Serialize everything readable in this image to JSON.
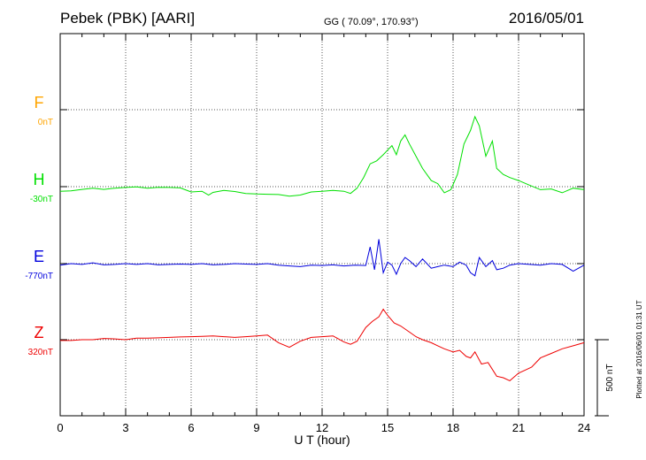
{
  "header": {
    "station": "Pebek (PBK)  [AARI]",
    "coords": "GG ( 70.09°, 170.93°)",
    "date": "2016/05/01"
  },
  "footer_note": "Plotted at 2016/06/01 01:31  UT",
  "scale_bar_label": "500 nT",
  "chart_data": {
    "type": "line",
    "xlabel": "U T (hour)",
    "xlim": [
      0,
      24
    ],
    "xticks": [
      0,
      3,
      6,
      9,
      12,
      15,
      18,
      21,
      24
    ],
    "xtick_labels": [
      "0",
      "3",
      "6",
      "9",
      "12",
      "15",
      "18",
      "21",
      "24"
    ],
    "grid": true,
    "scale_nT": 500,
    "series": [
      {
        "name": "F",
        "offset_label": "0nT",
        "color": "#ffa500",
        "x": [],
        "y": []
      },
      {
        "name": "H",
        "offset_label": "-30nT",
        "color": "#00e000",
        "x": [
          0,
          0.5,
          1,
          1.5,
          2,
          2.5,
          3,
          3.5,
          4,
          4.5,
          5,
          5.5,
          6,
          6.5,
          6.8,
          7,
          7.5,
          8,
          8.5,
          9,
          9.5,
          10,
          10.5,
          11,
          11.5,
          12,
          12.5,
          13,
          13.3,
          13.6,
          13.9,
          14.2,
          14.5,
          14.8,
          15,
          15.2,
          15.4,
          15.6,
          15.8,
          16,
          16.3,
          16.6,
          17,
          17.3,
          17.6,
          17.9,
          18.2,
          18.5,
          18.8,
          19,
          19.2,
          19.5,
          19.8,
          20,
          20.3,
          20.6,
          21,
          21.5,
          22,
          22.5,
          23,
          23.5,
          24
        ],
        "y": [
          -30,
          -28,
          -18,
          -10,
          -18,
          -10,
          -5,
          -2,
          -10,
          -4,
          -5,
          -8,
          -35,
          -30,
          -55,
          -38,
          -25,
          -32,
          -45,
          -48,
          -50,
          -52,
          -62,
          -55,
          -35,
          -30,
          -25,
          -30,
          -45,
          -10,
          60,
          150,
          170,
          210,
          240,
          270,
          210,
          300,
          340,
          280,
          200,
          120,
          40,
          20,
          -40,
          -20,
          80,
          280,
          370,
          460,
          400,
          200,
          300,
          120,
          80,
          60,
          40,
          10,
          -20,
          -15,
          -40,
          -10,
          -20
        ]
      },
      {
        "name": "E",
        "offset_label": "-770nT",
        "color": "#0000dd",
        "x": [
          0,
          0.5,
          1,
          1.5,
          2,
          2.5,
          3,
          3.5,
          4,
          4.5,
          5,
          5.5,
          6,
          6.5,
          7,
          7.5,
          8,
          8.5,
          9,
          9.5,
          10,
          10.5,
          11,
          11.5,
          12,
          12.5,
          13,
          13.5,
          14,
          14.2,
          14.4,
          14.6,
          14.8,
          15,
          15.2,
          15.4,
          15.6,
          15.8,
          16,
          16.3,
          16.6,
          17,
          17.3,
          17.6,
          18,
          18.3,
          18.6,
          18.8,
          19,
          19.2,
          19.5,
          19.8,
          20,
          20.3,
          20.6,
          21,
          21.5,
          22,
          22.5,
          23,
          23.5,
          24
        ],
        "y": [
          -10,
          0,
          -5,
          5,
          -8,
          -5,
          0,
          -5,
          0,
          -8,
          -5,
          -3,
          -5,
          0,
          -8,
          -5,
          0,
          -3,
          -5,
          0,
          -10,
          -15,
          -20,
          -10,
          -12,
          -8,
          -15,
          -10,
          -12,
          110,
          -40,
          160,
          -60,
          10,
          -10,
          -70,
          0,
          40,
          20,
          -20,
          30,
          -30,
          -20,
          -10,
          -20,
          10,
          -10,
          -60,
          -80,
          40,
          -20,
          20,
          -40,
          -30,
          -10,
          0,
          -5,
          -10,
          0,
          -5,
          -50,
          -10
        ]
      },
      {
        "name": "Z",
        "offset_label": "320nT",
        "color": "#ee0000",
        "x": [
          0,
          0.5,
          1,
          1.5,
          2,
          2.5,
          3,
          3.5,
          4,
          4.5,
          5,
          5.5,
          6,
          6.5,
          7,
          7.5,
          8,
          8.5,
          9,
          9.5,
          10,
          10.5,
          11,
          11.5,
          12,
          12.5,
          13,
          13.3,
          13.6,
          14,
          14.3,
          14.6,
          14.8,
          15,
          15.3,
          15.6,
          16,
          16.3,
          16.6,
          17,
          17.3,
          17.6,
          18,
          18.3,
          18.6,
          18.8,
          19,
          19.3,
          19.6,
          20,
          20.3,
          20.6,
          21,
          21.3,
          21.6,
          22,
          22.5,
          23,
          23.5,
          24
        ],
        "y": [
          -5,
          -5,
          0,
          0,
          8,
          5,
          0,
          10,
          10,
          12,
          15,
          18,
          20,
          22,
          25,
          20,
          15,
          20,
          25,
          30,
          -20,
          -50,
          -10,
          15,
          20,
          25,
          -15,
          -30,
          -10,
          80,
          120,
          150,
          200,
          160,
          110,
          90,
          50,
          20,
          0,
          -20,
          -40,
          -60,
          -80,
          -70,
          -110,
          -120,
          -80,
          -160,
          -150,
          -240,
          -250,
          -270,
          -220,
          -200,
          -180,
          -120,
          -90,
          -60,
          -40,
          -20
        ]
      }
    ]
  }
}
